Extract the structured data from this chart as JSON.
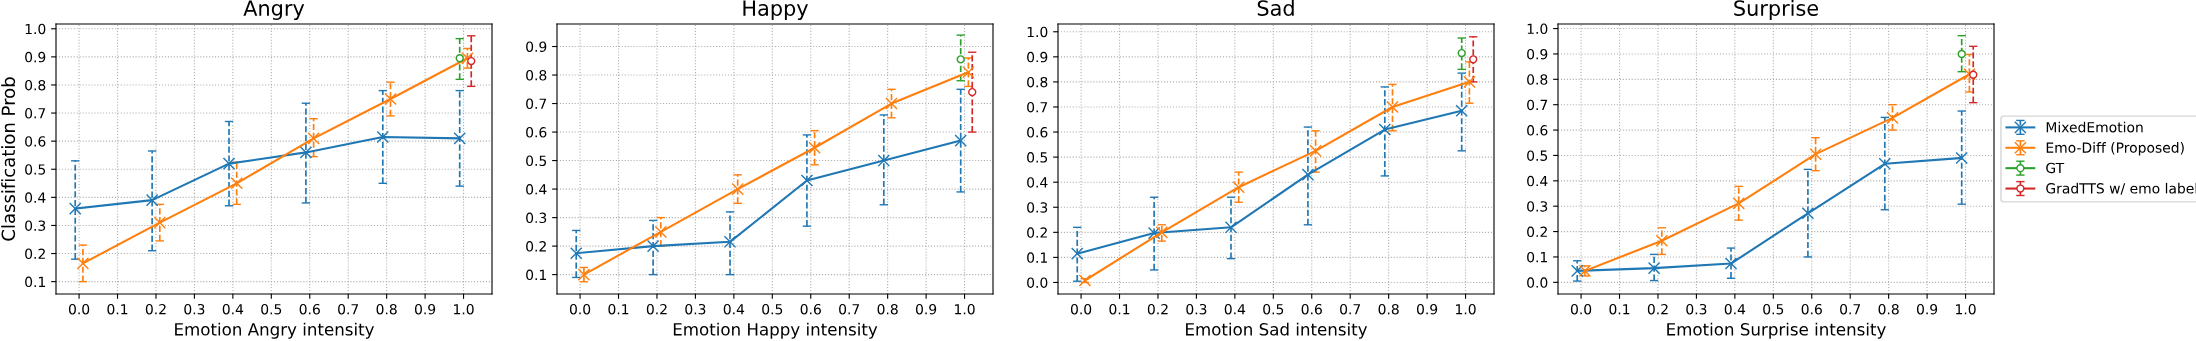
{
  "chart_data": [
    {
      "type": "line",
      "title": "Angry",
      "xlabel": "Emotion Angry intensity",
      "ylabel": "Classification Prob",
      "grid": true,
      "line_style": "solid",
      "xlim": [
        -0.06,
        1.074
      ],
      "ylim": [
        0.056,
        1.017
      ],
      "xticks": [
        {
          "value": 0,
          "label": "0.0"
        },
        {
          "value": 0.1,
          "label": "0.1"
        },
        {
          "value": 0.2,
          "label": "0.2"
        },
        {
          "value": 0.3,
          "label": "0.3"
        },
        {
          "value": 0.4,
          "label": "0.4"
        },
        {
          "value": 0.5,
          "label": "0.5"
        },
        {
          "value": 0.6,
          "label": "0.6"
        },
        {
          "value": 0.7,
          "label": "0.7"
        },
        {
          "value": 0.8,
          "label": "0.8"
        },
        {
          "value": 0.9,
          "label": "0.9"
        },
        {
          "value": 1,
          "label": "1.0"
        }
      ],
      "yticks": [
        {
          "value": 0.1,
          "label": "0.1"
        },
        {
          "value": 0.2,
          "label": "0.2"
        },
        {
          "value": 0.3,
          "label": "0.3"
        },
        {
          "value": 0.4,
          "label": "0.4"
        },
        {
          "value": 0.5,
          "label": "0.5"
        },
        {
          "value": 0.6,
          "label": "0.6"
        },
        {
          "value": 0.7,
          "label": "0.7"
        },
        {
          "value": 0.8,
          "label": "0.8"
        },
        {
          "value": 0.9,
          "label": "0.9"
        },
        {
          "value": 1,
          "label": "1.0"
        }
      ],
      "series": [
        {
          "color": "#1f77b4",
          "marker": "cross",
          "x": [
            -0.01,
            0.19,
            0.39,
            0.59,
            0.79,
            0.99
          ],
          "values": [
            0.36,
            0.39,
            0.52,
            0.56,
            0.615,
            0.61
          ],
          "errors": [
            [
              0.18,
              0.53
            ],
            [
              0.21,
              0.565
            ],
            [
              0.37,
              0.67
            ],
            [
              0.38,
              0.735
            ],
            [
              0.45,
              0.78
            ],
            [
              0.44,
              0.78
            ]
          ]
        },
        {
          "color": "#ff7f0e",
          "marker": "cross",
          "x": [
            0.01,
            0.21,
            0.41,
            0.61,
            0.81,
            1.01
          ],
          "values": [
            0.165,
            0.31,
            0.45,
            0.61,
            0.75,
            0.895
          ],
          "errors": [
            [
              0.1,
              0.23
            ],
            [
              0.245,
              0.375
            ],
            [
              0.375,
              0.525
            ],
            [
              0.545,
              0.68
            ],
            [
              0.69,
              0.81
            ],
            [
              0.86,
              0.93
            ]
          ]
        },
        {
          "color": "#2ca02c",
          "marker": "circle",
          "x": [
            0.99
          ],
          "values": [
            0.895
          ],
          "errors": [
            [
              0.82,
              0.965
            ]
          ]
        },
        {
          "color": "#d62728",
          "marker": "circle",
          "x": [
            1.02
          ],
          "values": [
            0.885
          ],
          "errors": [
            [
              0.795,
              0.975
            ]
          ]
        }
      ]
    },
    {
      "type": "line",
      "title": "Happy",
      "xlabel": "Emotion Happy intensity",
      "grid": true,
      "line_style": "solid",
      "xlim": [
        -0.06,
        1.074
      ],
      "ylim": [
        0.032,
        0.979
      ],
      "xticks": [
        {
          "value": 0,
          "label": "0.0"
        },
        {
          "value": 0.1,
          "label": "0.1"
        },
        {
          "value": 0.2,
          "label": "0.2"
        },
        {
          "value": 0.3,
          "label": "0.3"
        },
        {
          "value": 0.4,
          "label": "0.4"
        },
        {
          "value": 0.5,
          "label": "0.5"
        },
        {
          "value": 0.6,
          "label": "0.6"
        },
        {
          "value": 0.7,
          "label": "0.7"
        },
        {
          "value": 0.8,
          "label": "0.8"
        },
        {
          "value": 0.9,
          "label": "0.9"
        },
        {
          "value": 1,
          "label": "1.0"
        }
      ],
      "yticks": [
        {
          "value": 0.1,
          "label": "0.1"
        },
        {
          "value": 0.2,
          "label": "0.2"
        },
        {
          "value": 0.3,
          "label": "0.3"
        },
        {
          "value": 0.4,
          "label": "0.4"
        },
        {
          "value": 0.5,
          "label": "0.5"
        },
        {
          "value": 0.6,
          "label": "0.6"
        },
        {
          "value": 0.7,
          "label": "0.7"
        },
        {
          "value": 0.8,
          "label": "0.8"
        },
        {
          "value": 0.9,
          "label": "0.9"
        }
      ],
      "series": [
        {
          "color": "#1f77b4",
          "marker": "cross",
          "x": [
            -0.01,
            0.19,
            0.39,
            0.59,
            0.79,
            0.99
          ],
          "values": [
            0.175,
            0.2,
            0.215,
            0.43,
            0.5,
            0.57
          ],
          "errors": [
            [
              0.09,
              0.255
            ],
            [
              0.1,
              0.29
            ],
            [
              0.1,
              0.32
            ],
            [
              0.27,
              0.59
            ],
            [
              0.345,
              0.66
            ],
            [
              0.39,
              0.75
            ]
          ]
        },
        {
          "color": "#ff7f0e",
          "marker": "cross",
          "x": [
            0.01,
            0.21,
            0.41,
            0.61,
            0.81,
            1.01
          ],
          "values": [
            0.1,
            0.25,
            0.4,
            0.545,
            0.7,
            0.81
          ],
          "errors": [
            [
              0.075,
              0.125
            ],
            [
              0.2,
              0.3
            ],
            [
              0.35,
              0.45
            ],
            [
              0.485,
              0.605
            ],
            [
              0.65,
              0.75
            ],
            [
              0.76,
              0.86
            ]
          ]
        },
        {
          "color": "#2ca02c",
          "marker": "circle",
          "x": [
            0.99
          ],
          "values": [
            0.855
          ],
          "errors": [
            [
              0.78,
              0.94
            ]
          ]
        },
        {
          "color": "#d62728",
          "marker": "circle",
          "x": [
            1.02
          ],
          "values": [
            0.74
          ],
          "errors": [
            [
              0.6,
              0.88
            ]
          ]
        }
      ]
    },
    {
      "type": "line",
      "title": "Sad",
      "xlabel": "Emotion Sad intensity",
      "grid": true,
      "line_style": "solid",
      "xlim": [
        -0.06,
        1.074
      ],
      "ylim": [
        -0.046,
        1.031
      ],
      "xticks": [
        {
          "value": 0,
          "label": "0.0"
        },
        {
          "value": 0.1,
          "label": "0.1"
        },
        {
          "value": 0.2,
          "label": "0.2"
        },
        {
          "value": 0.3,
          "label": "0.3"
        },
        {
          "value": 0.4,
          "label": "0.4"
        },
        {
          "value": 0.5,
          "label": "0.5"
        },
        {
          "value": 0.6,
          "label": "0.6"
        },
        {
          "value": 0.7,
          "label": "0.7"
        },
        {
          "value": 0.8,
          "label": "0.8"
        },
        {
          "value": 0.9,
          "label": "0.9"
        },
        {
          "value": 1,
          "label": "1.0"
        }
      ],
      "yticks": [
        {
          "value": 0,
          "label": "0.0"
        },
        {
          "value": 0.1,
          "label": "0.1"
        },
        {
          "value": 0.2,
          "label": "0.2"
        },
        {
          "value": 0.3,
          "label": "0.3"
        },
        {
          "value": 0.4,
          "label": "0.4"
        },
        {
          "value": 0.5,
          "label": "0.5"
        },
        {
          "value": 0.6,
          "label": "0.6"
        },
        {
          "value": 0.7,
          "label": "0.7"
        },
        {
          "value": 0.8,
          "label": "0.8"
        },
        {
          "value": 0.9,
          "label": "0.9"
        },
        {
          "value": 1,
          "label": "1.0"
        }
      ],
      "series": [
        {
          "color": "#1f77b4",
          "marker": "cross",
          "x": [
            -0.01,
            0.19,
            0.39,
            0.59,
            0.79,
            0.99
          ],
          "values": [
            0.115,
            0.197,
            0.22,
            0.43,
            0.61,
            0.685
          ],
          "errors": [
            [
              0.005,
              0.22
            ],
            [
              0.05,
              0.34
            ],
            [
              0.095,
              0.34
            ],
            [
              0.23,
              0.62
            ],
            [
              0.425,
              0.78
            ],
            [
              0.525,
              0.835
            ]
          ]
        },
        {
          "color": "#ff7f0e",
          "marker": "cross",
          "x": [
            0.01,
            0.21,
            0.41,
            0.61,
            0.81,
            1.01
          ],
          "values": [
            0.008,
            0.2,
            0.38,
            0.525,
            0.7,
            0.8
          ],
          "errors": [
            [
              0.0,
              0.015
            ],
            [
              0.165,
              0.23
            ],
            [
              0.32,
              0.44
            ],
            [
              0.44,
              0.605
            ],
            [
              0.605,
              0.79
            ],
            [
              0.715,
              0.88
            ]
          ]
        },
        {
          "color": "#2ca02c",
          "marker": "circle",
          "x": [
            0.99
          ],
          "values": [
            0.915
          ],
          "errors": [
            [
              0.85,
              0.975
            ]
          ]
        },
        {
          "color": "#d62728",
          "marker": "circle",
          "x": [
            1.02
          ],
          "values": [
            0.89
          ],
          "errors": [
            [
              0.8,
              0.98
            ]
          ]
        }
      ]
    },
    {
      "type": "line",
      "title": "Surprise",
      "xlabel": "Emotion Surprise intensity",
      "grid": true,
      "line_style": "solid",
      "legend": "right",
      "xlim": [
        -0.06,
        1.074
      ],
      "ylim": [
        -0.046,
        1.018
      ],
      "xticks": [
        {
          "value": 0,
          "label": "0.0"
        },
        {
          "value": 0.1,
          "label": "0.1"
        },
        {
          "value": 0.2,
          "label": "0.2"
        },
        {
          "value": 0.3,
          "label": "0.3"
        },
        {
          "value": 0.4,
          "label": "0.4"
        },
        {
          "value": 0.5,
          "label": "0.5"
        },
        {
          "value": 0.6,
          "label": "0.6"
        },
        {
          "value": 0.7,
          "label": "0.7"
        },
        {
          "value": 0.8,
          "label": "0.8"
        },
        {
          "value": 0.9,
          "label": "0.9"
        },
        {
          "value": 1,
          "label": "1.0"
        }
      ],
      "yticks": [
        {
          "value": 0,
          "label": "0.0"
        },
        {
          "value": 0.1,
          "label": "0.1"
        },
        {
          "value": 0.2,
          "label": "0.2"
        },
        {
          "value": 0.3,
          "label": "0.3"
        },
        {
          "value": 0.4,
          "label": "0.4"
        },
        {
          "value": 0.5,
          "label": "0.5"
        },
        {
          "value": 0.6,
          "label": "0.6"
        },
        {
          "value": 0.7,
          "label": "0.7"
        },
        {
          "value": 0.8,
          "label": "0.8"
        },
        {
          "value": 0.9,
          "label": "0.9"
        },
        {
          "value": 1,
          "label": "1.0"
        }
      ],
      "series": [
        {
          "name": "MixedEmotion",
          "color": "#1f77b4",
          "marker": "cross",
          "x": [
            -0.01,
            0.19,
            0.39,
            0.59,
            0.79,
            0.99
          ],
          "values": [
            0.045,
            0.056,
            0.074,
            0.272,
            0.467,
            0.49
          ],
          "errors": [
            [
              0.005,
              0.085
            ],
            [
              0.007,
              0.11
            ],
            [
              0.016,
              0.135
            ],
            [
              0.1,
              0.445
            ],
            [
              0.286,
              0.65
            ],
            [
              0.308,
              0.675
            ]
          ]
        },
        {
          "name": "Emo-Diff (Proposed)",
          "color": "#ff7f0e",
          "marker": "cross",
          "x": [
            0.01,
            0.21,
            0.41,
            0.61,
            0.81,
            1.01
          ],
          "values": [
            0.045,
            0.164,
            0.311,
            0.505,
            0.648,
            0.82
          ],
          "errors": [
            [
              0.025,
              0.065
            ],
            [
              0.11,
              0.215
            ],
            [
              0.245,
              0.378
            ],
            [
              0.44,
              0.57
            ],
            [
              0.6,
              0.7
            ],
            [
              0.75,
              0.898
            ]
          ]
        },
        {
          "name": "GT",
          "color": "#2ca02c",
          "marker": "circle",
          "x": [
            0.99
          ],
          "values": [
            0.9
          ],
          "errors": [
            [
              0.83,
              0.972
            ]
          ]
        },
        {
          "name": "GradTTS w/ emo label",
          "color": "#d62728",
          "marker": "circle",
          "x": [
            1.02
          ],
          "values": [
            0.818
          ],
          "errors": [
            [
              0.708,
              0.93
            ]
          ]
        }
      ]
    }
  ]
}
